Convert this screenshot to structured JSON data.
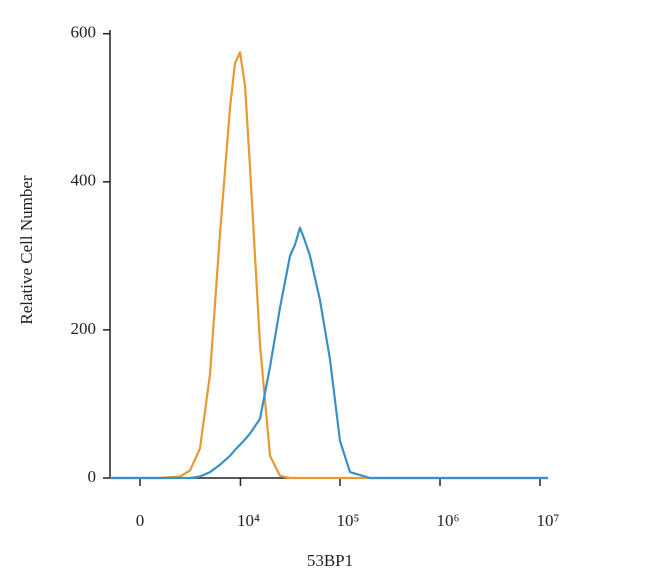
{
  "chart_data": {
    "type": "line",
    "x_label": "53BP1",
    "y_label": "Relative Cell Number",
    "xscale": "biexponential",
    "x": [
      -1495,
      0,
      954,
      2114,
      2846,
      3730,
      4812,
      6152,
      7817,
      8801,
      9900,
      11131,
      12510,
      15786,
      19903,
      25079,
      31591,
      35481,
      39786,
      44668,
      50099,
      63080,
      79433,
      100000,
      125893,
      199526,
      398107,
      1000000,
      3162278,
      12022644
    ],
    "series": [
      {
        "color": "#e89a30",
        "values": [
          0,
          0,
          0,
          2,
          10,
          40,
          140,
          330,
          500,
          560,
          575,
          530,
          420,
          180,
          30,
          3,
          0,
          0,
          0,
          0,
          0,
          0,
          0,
          0,
          0,
          0,
          0,
          0,
          0,
          0
        ]
      },
      {
        "color": "#3a8fc4",
        "values": [
          0,
          0,
          0,
          0,
          0,
          2,
          8,
          18,
          30,
          38,
          45,
          52,
          60,
          80,
          150,
          230,
          300,
          315,
          338,
          320,
          300,
          240,
          160,
          50,
          8,
          0,
          0,
          0,
          0,
          0
        ]
      }
    ],
    "xlim": [
      -1495,
      12022644
    ],
    "xticks": [
      0,
      {
        "value": 10000,
        "label": "10⁴"
      },
      {
        "value": 100000,
        "label": "10⁵"
      },
      {
        "value": 1000000,
        "label": "10⁶"
      },
      {
        "value": 10000000,
        "label": "10⁷"
      }
    ],
    "ylim": [
      0,
      605
    ],
    "yticks": [
      0,
      200,
      400,
      600
    ]
  }
}
